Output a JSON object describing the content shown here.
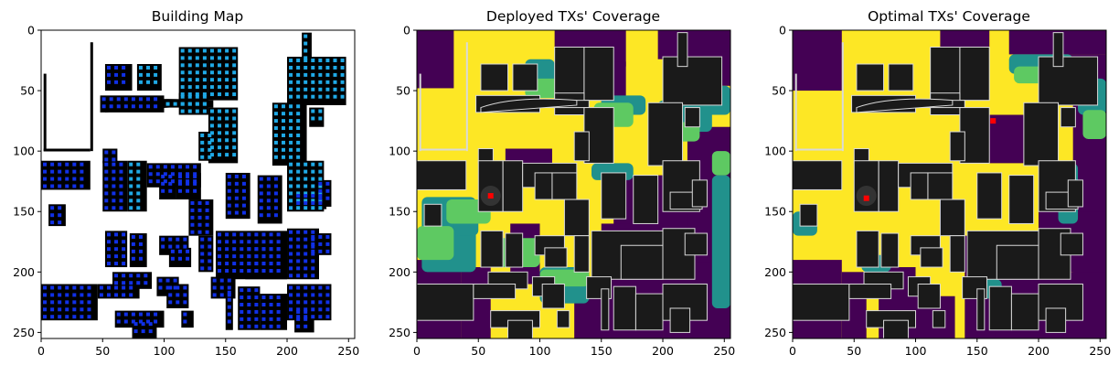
{
  "figure": {
    "colors": {
      "yellow": "#fde725",
      "green": "#5ec962",
      "teal": "#21918c",
      "purple": "#440154",
      "building": "#1a1a1a",
      "building_outline": "#d9d9d9",
      "rx_light": "#1fa9e6",
      "rx_dark": "#1030e6",
      "tx": "#ff0000"
    }
  },
  "chart_data": [
    {
      "type": "heatmap",
      "title": "Building Map",
      "xlabel": "",
      "ylabel": "",
      "xlim": [
        0,
        255
      ],
      "ylim": [
        255,
        0
      ],
      "x_ticks": [
        "0",
        "50",
        "100",
        "150",
        "200",
        "250"
      ],
      "y_ticks": [
        "0",
        "50",
        "100",
        "150",
        "200",
        "250"
      ],
      "grid": false,
      "description_values": "binary building mask (black) on white with blue receiver grid points"
    },
    {
      "type": "heatmap",
      "title": "Deployed TXs' Coverage",
      "xlabel": "",
      "ylabel": "",
      "xlim": [
        0,
        255
      ],
      "ylim": [
        255,
        0
      ],
      "x_ticks": [
        "0",
        "50",
        "100",
        "150",
        "200",
        "250"
      ],
      "y_ticks": [
        "0",
        "50",
        "100",
        "150",
        "200",
        "250"
      ],
      "grid": false,
      "tx_points": [
        [
          60,
          137
        ]
      ]
    },
    {
      "type": "heatmap",
      "title": "Optimal TXs' Coverage",
      "xlabel": "",
      "ylabel": "",
      "xlim": [
        0,
        255
      ],
      "ylim": [
        255,
        0
      ],
      "x_ticks": [
        "0",
        "50",
        "100",
        "150",
        "200",
        "250"
      ],
      "y_ticks": [
        "0",
        "50",
        "100",
        "150",
        "200",
        "250"
      ],
      "grid": false,
      "tx_points": [
        [
          60,
          139
        ],
        [
          163,
          75
        ]
      ]
    }
  ]
}
